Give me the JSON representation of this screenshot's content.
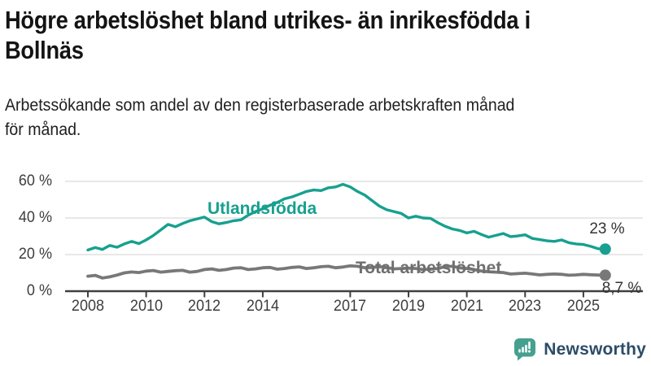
{
  "header": {
    "title_lines": [
      "Högre arbetslöshet bland utrikes- än inrikesfödda i",
      "Bollnäs"
    ],
    "subtitle_lines": [
      "Arbetssökande som andel av den registerbaserade arbetskraften månad",
      "för månad."
    ]
  },
  "chart_data": {
    "type": "line",
    "title": "Högre arbetslöshet bland utrikes- än inrikesfödda i Bollnäs",
    "subtitle": "Arbetssökande som andel av den registerbaserade arbetskraften månad för månad.",
    "x_axis": {
      "range": [
        2007.3,
        2026.2
      ],
      "ticks": [
        {
          "value": 2008,
          "label": "2008"
        },
        {
          "value": 2010,
          "label": "2010"
        },
        {
          "value": 2012,
          "label": "2012"
        },
        {
          "value": 2014,
          "label": "2014"
        },
        {
          "value": 2017,
          "label": "2017"
        },
        {
          "value": 2019,
          "label": "2019"
        },
        {
          "value": 2021,
          "label": "2021"
        },
        {
          "value": 2023,
          "label": "2023"
        },
        {
          "value": 2025,
          "label": "2025"
        }
      ]
    },
    "y_axis": {
      "range": [
        0,
        63
      ],
      "unit": "%",
      "grid": true,
      "ticks": [
        {
          "value": 60,
          "label": "60 %"
        },
        {
          "value": 40,
          "label": "40 %"
        },
        {
          "value": 20,
          "label": "20 %"
        },
        {
          "value": 0,
          "label": "0 %"
        }
      ]
    },
    "legend_position": "inline-labels",
    "series": [
      {
        "name": "Utlandsfödda",
        "color": "#17A08F",
        "end_label": "23 %",
        "end_value": 23,
        "points": [
          [
            2008.0,
            22.5
          ],
          [
            2008.25,
            23.8
          ],
          [
            2008.5,
            22.8
          ],
          [
            2008.75,
            25.0
          ],
          [
            2009.0,
            24.0
          ],
          [
            2009.25,
            25.8
          ],
          [
            2009.5,
            27.2
          ],
          [
            2009.75,
            26.0
          ],
          [
            2010.0,
            28.0
          ],
          [
            2010.25,
            30.5
          ],
          [
            2010.5,
            33.5
          ],
          [
            2010.75,
            36.5
          ],
          [
            2011.0,
            35.2
          ],
          [
            2011.25,
            37.0
          ],
          [
            2011.5,
            38.5
          ],
          [
            2011.75,
            39.5
          ],
          [
            2012.0,
            40.5
          ],
          [
            2012.25,
            38.0
          ],
          [
            2012.5,
            36.8
          ],
          [
            2012.75,
            37.5
          ],
          [
            2013.0,
            38.5
          ],
          [
            2013.25,
            39.0
          ],
          [
            2013.5,
            41.5
          ],
          [
            2013.75,
            43.5
          ],
          [
            2014.0,
            45.0
          ],
          [
            2014.25,
            47.0
          ],
          [
            2014.5,
            48.5
          ],
          [
            2014.75,
            50.5
          ],
          [
            2015.0,
            51.5
          ],
          [
            2015.25,
            53.0
          ],
          [
            2015.5,
            54.5
          ],
          [
            2015.75,
            55.3
          ],
          [
            2016.0,
            55.0
          ],
          [
            2016.25,
            56.5
          ],
          [
            2016.5,
            57.0
          ],
          [
            2016.75,
            58.4
          ],
          [
            2017.0,
            57.0
          ],
          [
            2017.25,
            54.5
          ],
          [
            2017.5,
            52.5
          ],
          [
            2017.75,
            49.5
          ],
          [
            2018.0,
            46.5
          ],
          [
            2018.25,
            44.5
          ],
          [
            2018.5,
            43.5
          ],
          [
            2018.75,
            42.5
          ],
          [
            2019.0,
            40.0
          ],
          [
            2019.25,
            41.0
          ],
          [
            2019.5,
            40.0
          ],
          [
            2019.75,
            39.8
          ],
          [
            2020.0,
            37.5
          ],
          [
            2020.25,
            35.5
          ],
          [
            2020.5,
            34.0
          ],
          [
            2020.75,
            33.2
          ],
          [
            2021.0,
            31.8
          ],
          [
            2021.25,
            32.7
          ],
          [
            2021.5,
            31.0
          ],
          [
            2021.75,
            29.5
          ],
          [
            2022.0,
            30.5
          ],
          [
            2022.25,
            31.5
          ],
          [
            2022.5,
            29.8
          ],
          [
            2022.75,
            30.2
          ],
          [
            2023.0,
            30.8
          ],
          [
            2023.25,
            28.8
          ],
          [
            2023.5,
            28.2
          ],
          [
            2023.75,
            27.5
          ],
          [
            2024.0,
            27.2
          ],
          [
            2024.25,
            28.0
          ],
          [
            2024.5,
            26.5
          ],
          [
            2024.75,
            25.8
          ],
          [
            2025.0,
            25.5
          ],
          [
            2025.25,
            24.5
          ],
          [
            2025.5,
            23.2
          ],
          [
            2025.75,
            23.0
          ]
        ]
      },
      {
        "name": "Total arbetslöshet",
        "color": "#787878",
        "end_label": "8,7 %",
        "end_value": 8.7,
        "points": [
          [
            2008.0,
            8.2
          ],
          [
            2008.25,
            8.6
          ],
          [
            2008.5,
            7.2
          ],
          [
            2008.75,
            7.8
          ],
          [
            2009.0,
            8.8
          ],
          [
            2009.25,
            10.0
          ],
          [
            2009.5,
            10.5
          ],
          [
            2009.75,
            10.2
          ],
          [
            2010.0,
            11.0
          ],
          [
            2010.25,
            11.3
          ],
          [
            2010.5,
            10.4
          ],
          [
            2010.75,
            10.8
          ],
          [
            2011.0,
            11.2
          ],
          [
            2011.25,
            11.4
          ],
          [
            2011.5,
            10.4
          ],
          [
            2011.75,
            10.8
          ],
          [
            2012.0,
            11.8
          ],
          [
            2012.25,
            12.2
          ],
          [
            2012.5,
            11.4
          ],
          [
            2012.75,
            11.8
          ],
          [
            2013.0,
            12.6
          ],
          [
            2013.25,
            12.8
          ],
          [
            2013.5,
            11.8
          ],
          [
            2013.75,
            12.2
          ],
          [
            2014.0,
            12.8
          ],
          [
            2014.25,
            13.0
          ],
          [
            2014.5,
            12.0
          ],
          [
            2014.75,
            12.4
          ],
          [
            2015.0,
            13.0
          ],
          [
            2015.25,
            13.3
          ],
          [
            2015.5,
            12.4
          ],
          [
            2015.75,
            12.8
          ],
          [
            2016.0,
            13.4
          ],
          [
            2016.25,
            13.6
          ],
          [
            2016.5,
            12.8
          ],
          [
            2016.75,
            13.2
          ],
          [
            2017.0,
            13.8
          ],
          [
            2017.25,
            13.6
          ],
          [
            2017.5,
            12.8
          ],
          [
            2017.75,
            13.0
          ],
          [
            2018.0,
            13.4
          ],
          [
            2018.25,
            13.0
          ],
          [
            2018.5,
            12.2
          ],
          [
            2018.75,
            12.4
          ],
          [
            2019.0,
            12.6
          ],
          [
            2019.25,
            12.4
          ],
          [
            2019.5,
            11.8
          ],
          [
            2019.75,
            12.0
          ],
          [
            2020.0,
            12.4
          ],
          [
            2020.25,
            13.4
          ],
          [
            2020.5,
            13.6
          ],
          [
            2020.75,
            12.8
          ],
          [
            2021.0,
            12.4
          ],
          [
            2021.25,
            11.8
          ],
          [
            2021.5,
            11.0
          ],
          [
            2021.75,
            10.6
          ],
          [
            2022.0,
            10.4
          ],
          [
            2022.25,
            10.2
          ],
          [
            2022.5,
            9.4
          ],
          [
            2022.75,
            9.6
          ],
          [
            2023.0,
            9.8
          ],
          [
            2023.25,
            9.4
          ],
          [
            2023.5,
            8.9
          ],
          [
            2023.75,
            9.2
          ],
          [
            2024.0,
            9.4
          ],
          [
            2024.25,
            9.2
          ],
          [
            2024.5,
            8.7
          ],
          [
            2024.75,
            8.9
          ],
          [
            2025.0,
            9.2
          ],
          [
            2025.25,
            9.0
          ],
          [
            2025.5,
            8.8
          ],
          [
            2025.75,
            8.7
          ]
        ]
      }
    ]
  },
  "colors": {
    "accent": "#17A08F",
    "series_gray": "#787878",
    "grid": "#DADADA",
    "axis": "#404040",
    "tick_text": "#3D3D3D",
    "end_label": "#333333",
    "logo_teal": "#45A08F",
    "brand_text": "#2C4C66"
  },
  "footer": {
    "brand": "Newsworthy"
  }
}
